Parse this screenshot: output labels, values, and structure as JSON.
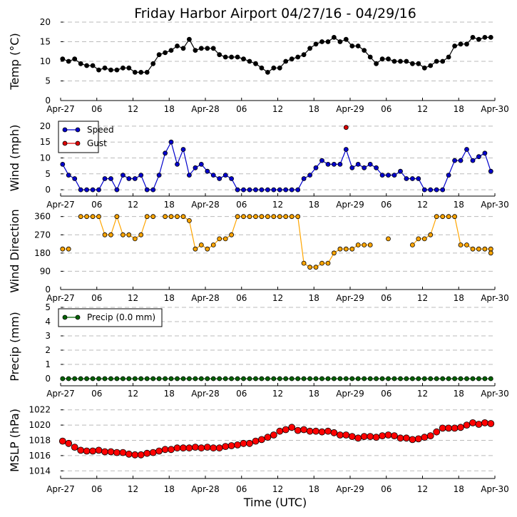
{
  "chart_data": {
    "type": "line",
    "title": "Friday Harbor Airport 04/27/16 - 04/29/16",
    "xlabel": "Time (UTC)",
    "x_tick_labels": [
      "Apr-27",
      "06",
      "12",
      "18",
      "Apr-28",
      "06",
      "12",
      "18",
      "Apr-29",
      "06",
      "12",
      "18",
      "Apr-30"
    ],
    "x_hours": [
      0.33,
      1.33,
      2.33,
      3.33,
      4.33,
      5.33,
      6.33,
      7.33,
      8.33,
      9.33,
      10.33,
      11.33,
      12.33,
      13.33,
      14.33,
      15.33,
      16.33,
      17.33,
      18.33,
      19.33,
      20.33,
      21.33,
      22.33,
      23.33,
      24.33,
      25.33,
      26.33,
      27.33,
      28.33,
      29.33,
      30.33,
      31.33,
      32.33,
      33.33,
      34.33,
      35.33,
      36.33,
      37.33,
      38.33,
      39.33,
      40.33,
      41.33,
      42.33,
      43.33,
      44.33,
      45.33,
      46.33,
      47.33,
      48.33,
      49.33,
      50.33,
      51.33,
      52.33,
      53.33,
      54.33,
      55.33,
      56.33,
      57.33,
      58.33,
      59.33,
      60.33,
      61.33,
      62.33,
      63.33,
      64.33,
      65.33,
      66.33,
      67.33,
      68.33,
      69.33,
      70.33,
      71.33
    ],
    "panels": [
      {
        "id": "temp",
        "ylabel": "Temp (°C)",
        "ylim": [
          0,
          20
        ],
        "yticks": [
          0,
          5,
          10,
          15,
          20
        ],
        "grid": true,
        "series": [
          {
            "color": "#000000",
            "line": true,
            "values": [
              10.6,
              10,
              10.6,
              9.4,
              8.9,
              8.9,
              7.8,
              8.3,
              7.8,
              7.8,
              8.3,
              8.3,
              7.2,
              7.2,
              7.2,
              9.4,
              11.7,
              12.2,
              12.8,
              13.9,
              13.3,
              15.6,
              12.8,
              13.3,
              13.3,
              13.3,
              11.7,
              11.1,
              11.1,
              11.1,
              10.6,
              10,
              9.4,
              8.3,
              7.2,
              8.3,
              8.3,
              10,
              10.6,
              11.1,
              11.7,
              13.3,
              14.4,
              15,
              15,
              16.1,
              15,
              15.6,
              13.9,
              13.9,
              12.8,
              11.1,
              9.4,
              10.6,
              10.6,
              10,
              10,
              10,
              9.4,
              9.4,
              8.3,
              8.9,
              10,
              10,
              11.1,
              13.9,
              14.4,
              14.4,
              16.1,
              15.6,
              16.1,
              16.1
            ]
          }
        ]
      },
      {
        "id": "wind",
        "ylabel": "Wind (mph)",
        "ylim": [
          -2,
          22
        ],
        "yticks": [
          0,
          5,
          10,
          15,
          20
        ],
        "grid": true,
        "legend": "upper-left",
        "series": [
          {
            "name": "Speed",
            "color": "#0000cc",
            "line": true,
            "values": [
              8,
              4.6,
              3.5,
              0,
              0,
              0,
              0,
              3.5,
              3.5,
              0,
              4.6,
              3.5,
              3.5,
              4.6,
              0,
              0,
              4.6,
              11.5,
              15,
              8,
              12.7,
              4.6,
              6.9,
              8,
              5.8,
              4.6,
              3.5,
              4.6,
              3.5,
              0,
              0,
              0,
              0,
              0,
              0,
              0,
              0,
              0,
              0,
              0,
              3.5,
              4.6,
              6.9,
              9.2,
              8,
              8,
              8,
              12.7,
              6.9,
              8,
              6.9,
              8,
              6.9,
              4.6,
              4.6,
              4.6,
              5.8,
              3.5,
              3.5,
              3.5,
              0,
              0,
              0,
              0,
              4.6,
              9.2,
              9.2,
              12.7,
              9.2,
              10.4,
              11.5,
              5.8
            ]
          },
          {
            "name": "Gust",
            "color": "#dd0000",
            "line": false,
            "points": [
              [
                47.33,
                19.6
              ]
            ]
          }
        ]
      },
      {
        "id": "dir",
        "ylabel": "Wind Direction",
        "ylim": [
          0,
          380
        ],
        "yticks": [
          0,
          90,
          180,
          270,
          360
        ],
        "ytick_labels": [
          "0",
          "90",
          "180",
          "270",
          "360"
        ],
        "grid": true,
        "series": [
          {
            "color": "#ffa500",
            "line": true,
            "values": [
              200,
              200,
              null,
              360,
              360,
              360,
              360,
              270,
              270,
              360,
              270,
              270,
              250,
              270,
              360,
              360,
              null,
              360,
              360,
              360,
              360,
              340,
              200,
              220,
              200,
              220,
              250,
              250,
              270,
              360,
              360,
              360,
              360,
              360,
              360,
              360,
              360,
              360,
              360,
              360,
              130,
              110,
              110,
              130,
              130,
              180,
              200,
              200,
              200,
              220,
              220,
              220,
              null,
              null,
              250,
              null,
              null,
              null,
              220,
              250,
              250,
              270,
              360,
              360,
              360,
              360,
              220,
              220,
              200,
              200,
              200,
              200
            ]
          }
        ],
        "extra_points": [
          {
            "x": 71.33,
            "y": 180
          }
        ]
      },
      {
        "id": "precip",
        "ylabel": "Precip (mm)",
        "ylim": [
          -0.5,
          5
        ],
        "yticks": [
          0,
          1,
          2,
          3,
          4,
          5
        ],
        "grid": true,
        "legend": "upper-left",
        "series": [
          {
            "name": "Precip (0.0 mm)",
            "color": "#006400",
            "line": true,
            "constant": 0
          }
        ]
      },
      {
        "id": "mslp",
        "ylabel": "MSLP (hPa)",
        "ylim": [
          1013,
          1023
        ],
        "yticks": [
          1014,
          1016,
          1018,
          1020,
          1022
        ],
        "grid": true,
        "series": [
          {
            "color": "#ff0000",
            "line": false,
            "values": [
              1017.9,
              1017.6,
              1017.1,
              1016.7,
              1016.6,
              1016.6,
              1016.7,
              1016.5,
              1016.5,
              1016.4,
              1016.4,
              1016.2,
              1016.1,
              1016.1,
              1016.3,
              1016.4,
              1016.6,
              1016.8,
              1016.8,
              1017,
              1017,
              1017,
              1017.1,
              1017,
              1017.1,
              1017,
              1017,
              1017.2,
              1017.3,
              1017.4,
              1017.6,
              1017.6,
              1017.9,
              1018.1,
              1018.4,
              1018.7,
              1019.2,
              1019.4,
              1019.7,
              1019.3,
              1019.4,
              1019.2,
              1019.2,
              1019.1,
              1019.2,
              1019,
              1018.7,
              1018.7,
              1018.5,
              1018.3,
              1018.5,
              1018.5,
              1018.4,
              1018.6,
              1018.7,
              1018.6,
              1018.3,
              1018.3,
              1018.1,
              1018.2,
              1018.4,
              1018.6,
              1019.1,
              1019.6,
              1019.6,
              1019.6,
              1019.7,
              1020,
              1020.3,
              1020.1,
              1020.3,
              1020.2
            ]
          }
        ]
      }
    ]
  }
}
